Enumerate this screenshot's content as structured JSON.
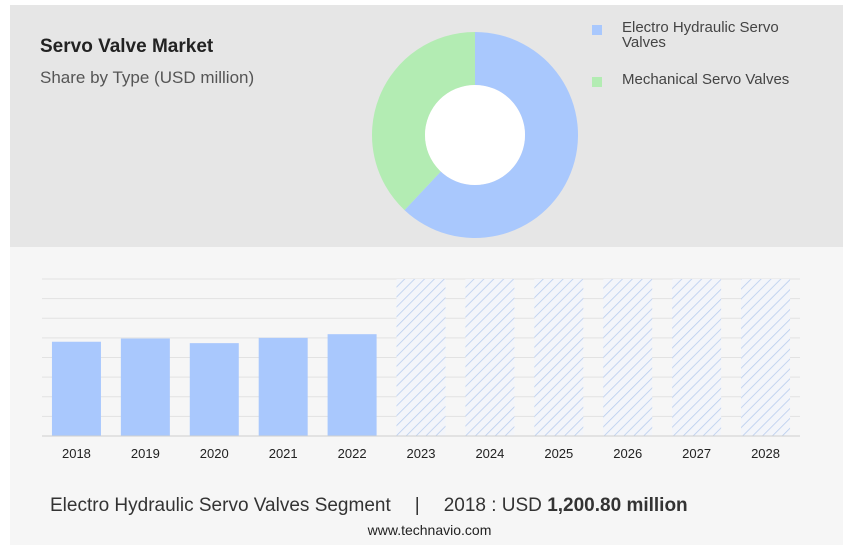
{
  "chart_data": [
    {
      "type": "pie",
      "title": "Servo Valve Market",
      "subtitle": "Share by Type (USD million)",
      "legend_position": "top-right",
      "slices": [
        {
          "label": "Electro Hydraulic Servo Valves",
          "value": 62,
          "color": "#a9c8fd"
        },
        {
          "label": "Mechanical Servo Valves",
          "value": 38,
          "color": "#b3ecb3"
        }
      ]
    },
    {
      "type": "bar",
      "categories": [
        "2018",
        "2019",
        "2020",
        "2021",
        "2022",
        "2023",
        "2024",
        "2025",
        "2026",
        "2027",
        "2028"
      ],
      "values": [
        1200.8,
        1242,
        1183,
        1250,
        1297,
        null,
        null,
        null,
        null,
        null,
        null
      ],
      "forecast_categories": [
        "2023",
        "2024",
        "2025",
        "2026",
        "2027",
        "2028"
      ],
      "ylim": [
        0,
        2000
      ],
      "grid": true,
      "bar_color": "#a9c8fd",
      "forecast_color": "#b9cdee"
    }
  ],
  "footer": {
    "segment": "Electro Hydraulic Servo Valves Segment",
    "separator": "|",
    "year_label": "2018 : USD",
    "value": "1,200.80 million"
  },
  "source": "www.technavio.com"
}
